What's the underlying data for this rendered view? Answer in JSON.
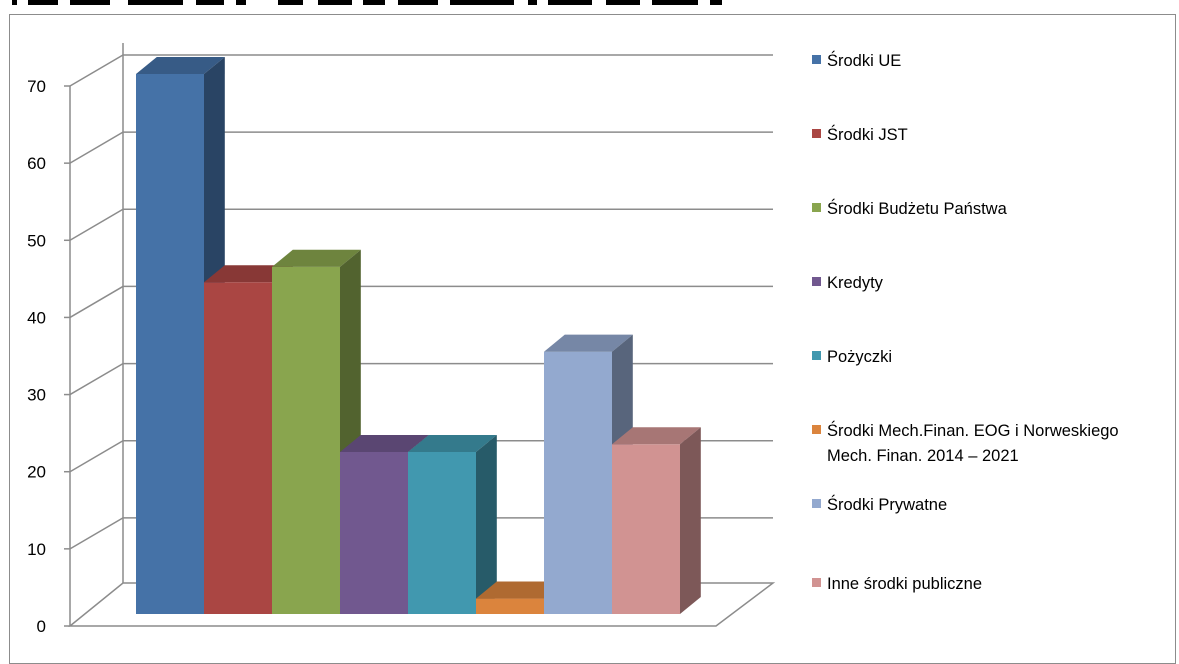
{
  "chart_data": {
    "type": "bar",
    "title": "",
    "xlabel": "",
    "ylabel": "",
    "ylim": [
      0,
      70
    ],
    "yticks": [
      "0",
      "10",
      "20",
      "30",
      "40",
      "50",
      "60",
      "70"
    ],
    "grid": true,
    "legend": "right",
    "series": [
      {
        "name": "Środki UE",
        "value": 70,
        "color": "#4572a7"
      },
      {
        "name": "Środki JST",
        "value": 43,
        "color": "#aa4643"
      },
      {
        "name": "Środki Budżetu Państwa",
        "value": 45,
        "color": "#89a54e"
      },
      {
        "name": "Kredyty",
        "value": 21,
        "color": "#71588f"
      },
      {
        "name": "Pożyczki",
        "value": 21,
        "color": "#4198af"
      },
      {
        "name": "Środki Mech.Finan. EOG i Norweskiego Mech. Finan. 2014 – 2021",
        "legend_lines": [
          "Środki Mech.Finan. EOG i Norweskiego",
          "Mech. Finan. 2014 – 2021"
        ],
        "value": 2,
        "color": "#db843d"
      },
      {
        "name": "Środki Prywatne",
        "value": 34,
        "color": "#93a9cf"
      },
      {
        "name": "Inne środki publiczne",
        "value": 22,
        "color": "#d19392"
      }
    ]
  }
}
